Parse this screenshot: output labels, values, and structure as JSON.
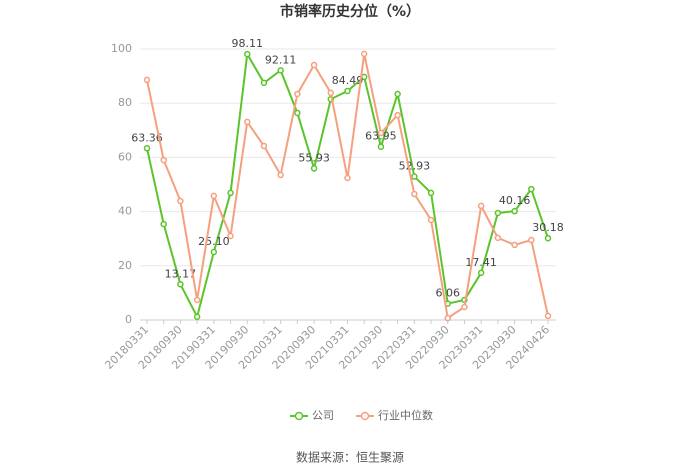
{
  "chart_data": {
    "type": "line",
    "title": "市销率历史分位（%）",
    "categories": [
      "20180331",
      null,
      "20180930",
      null,
      "20190331",
      null,
      "20190930",
      null,
      "20200331",
      null,
      "20200930",
      null,
      "20210331",
      null,
      "20210930",
      null,
      "20220331",
      null,
      "20220930",
      null,
      "20230331",
      null,
      "20230930",
      null,
      "20240426"
    ],
    "series": [
      {
        "name": "公司",
        "color": "#5bc42b",
        "values": [
          63.36,
          35.4,
          13.17,
          1.2,
          25.1,
          46.9,
          98.11,
          87.5,
          92.11,
          76.4,
          55.93,
          81.5,
          84.49,
          89.7,
          63.95,
          83.4,
          52.93,
          46.9,
          6.06,
          7.4,
          17.41,
          39.5,
          40.16,
          48.3,
          30.18
        ],
        "value_labels": [
          "63.36",
          null,
          "13.17",
          null,
          "25.10",
          null,
          "98.11",
          null,
          "92.11",
          null,
          "55.93",
          null,
          "84.49",
          null,
          "63.95",
          null,
          "52.93",
          null,
          "6.06",
          null,
          "17.41",
          null,
          "40.16",
          null,
          "30.18"
        ]
      },
      {
        "name": "行业中位数",
        "color": "#f5a07f",
        "values": [
          88.6,
          59,
          43.9,
          7.4,
          45.8,
          31,
          73.1,
          64.2,
          53.5,
          83.4,
          94.1,
          83.8,
          52.4,
          98.2,
          69,
          75.6,
          46.5,
          36.9,
          0.7,
          4.8,
          42.1,
          30.3,
          27.7,
          29.5,
          1.5
        ]
      }
    ],
    "ylim": [
      0,
      100
    ],
    "yticks": [
      0,
      20,
      40,
      60,
      80,
      100
    ],
    "grid": true,
    "source": "数据来源：恒生聚源"
  }
}
